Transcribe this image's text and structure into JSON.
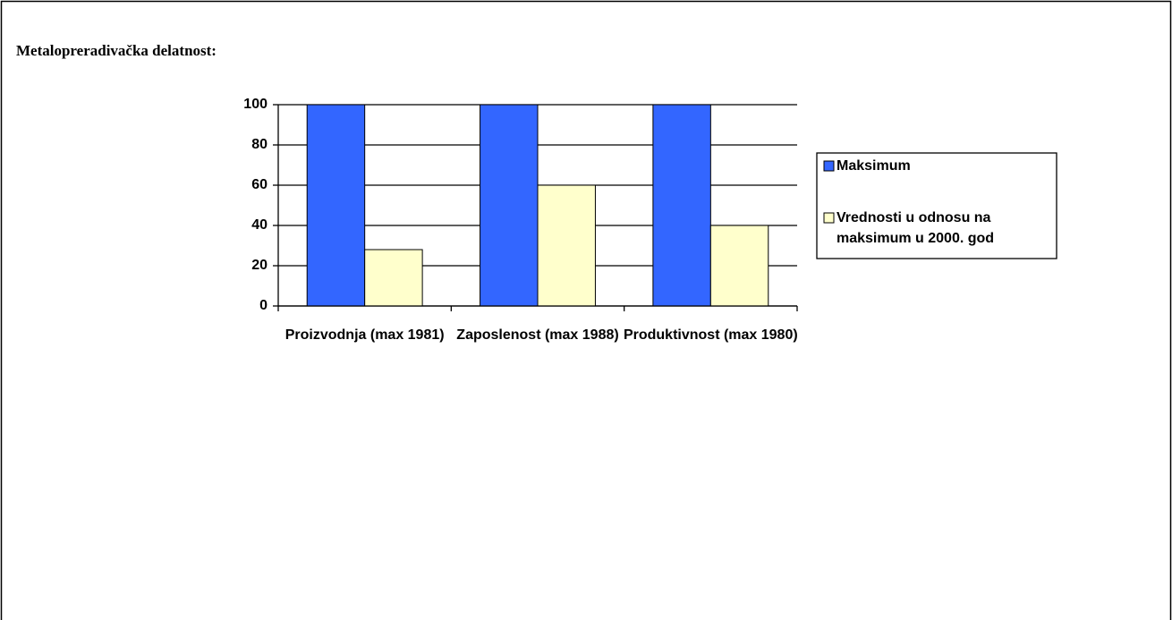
{
  "chart_data": {
    "type": "bar",
    "title": "Metalopreradivačka delatnost:",
    "categories": [
      "Proizvodnja (max 1981)",
      "Zaposlenost (max 1988)",
      "Produktivnost (max 1980)"
    ],
    "series": [
      {
        "name": "Maksimum",
        "color": "#3366ff",
        "values": [
          100,
          100,
          100
        ]
      },
      {
        "name": "Vrednosti u odnosu na maksimum u 2000. god",
        "color": "#ffffcc",
        "values": [
          28,
          60,
          40
        ]
      }
    ],
    "ylim": [
      0,
      100
    ],
    "yticks": [
      0,
      20,
      40,
      60,
      80,
      100
    ],
    "grid": true,
    "legend": "right"
  }
}
